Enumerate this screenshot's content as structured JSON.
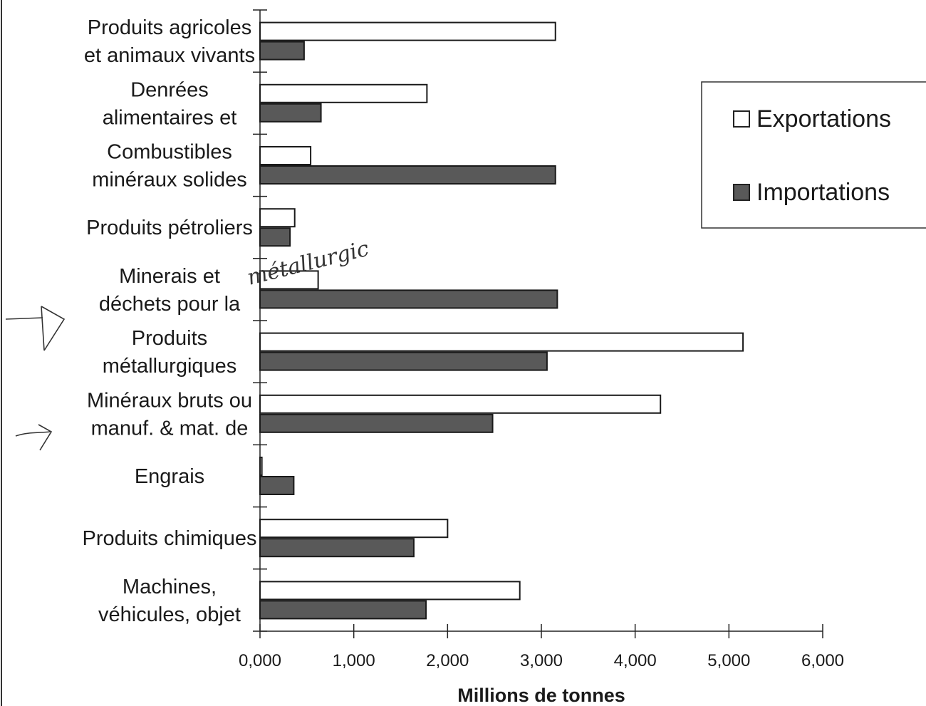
{
  "chart_data": {
    "type": "bar",
    "orientation": "horizontal",
    "categories": [
      [
        "Produits agricoles",
        "et animaux vivants"
      ],
      [
        "Denrées",
        "alimentaires et"
      ],
      [
        "Combustibles",
        "minéraux solides"
      ],
      [
        "Produits pétroliers"
      ],
      [
        "Minerais et",
        "déchets pour la"
      ],
      [
        "Produits",
        "métallurgiques"
      ],
      [
        "Minéraux bruts ou",
        "manuf. & mat. de"
      ],
      [
        "Engrais"
      ],
      [
        "Produits chimiques"
      ],
      [
        "Machines,",
        "véhicules, objet"
      ]
    ],
    "series": [
      {
        "name": "Exportations",
        "color": "#ffffff",
        "values": [
          3150,
          1780,
          540,
          370,
          620,
          5150,
          4270,
          20,
          2000,
          2770
        ]
      },
      {
        "name": "Importations",
        "color": "#595959",
        "values": [
          470,
          650,
          3150,
          320,
          3170,
          3060,
          2480,
          360,
          1640,
          1770
        ]
      }
    ],
    "xlabel": "Millions de tonnes",
    "xlim": [
      0,
      6000
    ],
    "xticks": [
      "0,000",
      "1,000",
      "2,000",
      "3,000",
      "4,000",
      "5,000",
      "6,000"
    ],
    "grid": false,
    "legend_position": "right"
  },
  "annotations": {
    "handwritten_note": "métallurgic"
  }
}
